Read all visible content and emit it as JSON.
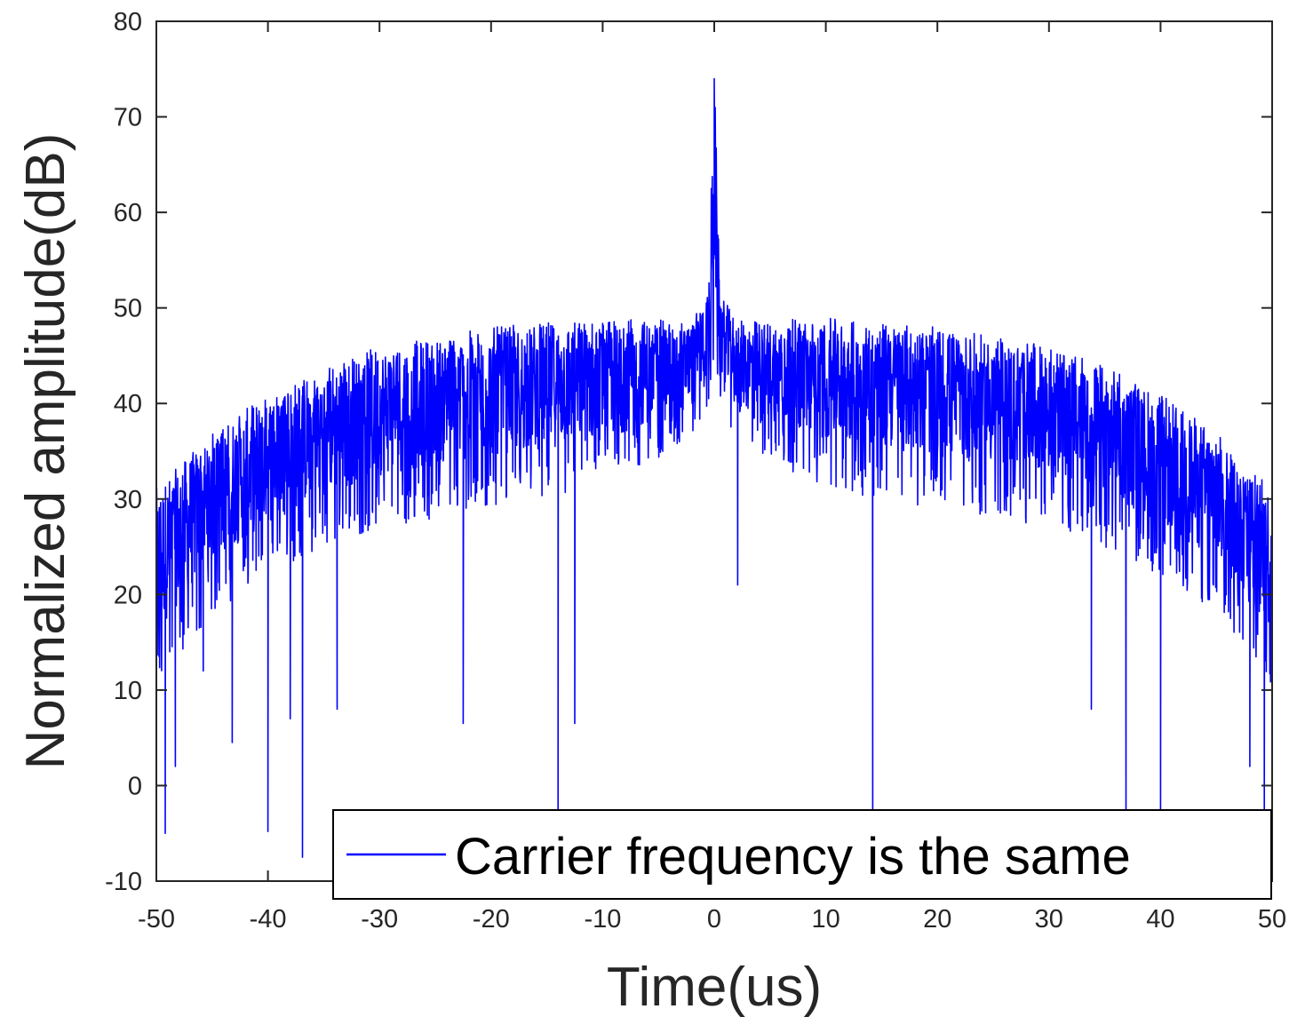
{
  "chart_data": {
    "type": "line",
    "xlabel": "Time(us)",
    "ylabel": "Normalized amplitude(dB)",
    "xlim": [
      -50,
      50
    ],
    "ylim": [
      -10,
      80
    ],
    "x_ticks": [
      -50,
      -40,
      -30,
      -20,
      -10,
      0,
      10,
      20,
      30,
      40,
      50
    ],
    "y_ticks": [
      -10,
      0,
      10,
      20,
      30,
      40,
      50,
      60,
      70,
      80
    ],
    "x_tick_labels": [
      "-50",
      "-40",
      "-30",
      "-20",
      "-10",
      "0",
      "10",
      "20",
      "30",
      "40",
      "50"
    ],
    "y_tick_labels": [
      "-10",
      "0",
      "10",
      "20",
      "30",
      "40",
      "50",
      "60",
      "70",
      "80"
    ],
    "legend": {
      "position": "bottom-right",
      "entries": [
        "Carrier frequency is the same"
      ]
    },
    "grid": false,
    "series": [
      {
        "name": "Carrier frequency is the same",
        "color": "#0000ff",
        "profile": {
          "x": [
            -50,
            -45,
            -40,
            -35,
            -30,
            -20,
            -10,
            -2,
            -0.5,
            0,
            0.5,
            2,
            10,
            20,
            30,
            35,
            40,
            45,
            50
          ],
          "upper": [
            30,
            36,
            40,
            43,
            45,
            47,
            48,
            48,
            51,
            74,
            51,
            48,
            48,
            47,
            45,
            43,
            40,
            36,
            30
          ],
          "lower": [
            10,
            18,
            22,
            25,
            27,
            29,
            31,
            36,
            40,
            44,
            40,
            36,
            31,
            29,
            27,
            25,
            22,
            18,
            10
          ]
        },
        "deep_nulls": [
          {
            "x": -49.2,
            "y": -5
          },
          {
            "x": -48.3,
            "y": 2
          },
          {
            "x": -45.8,
            "y": 12
          },
          {
            "x": -43.2,
            "y": 4.5
          },
          {
            "x": -40.0,
            "y": -4.8
          },
          {
            "x": -38.0,
            "y": 7
          },
          {
            "x": -36.9,
            "y": -7.5
          },
          {
            "x": -33.8,
            "y": 8
          },
          {
            "x": -22.5,
            "y": 6.5
          },
          {
            "x": -14.0,
            "y": -3
          },
          {
            "x": -12.5,
            "y": 6.5
          },
          {
            "x": 2.1,
            "y": 21
          },
          {
            "x": 14.2,
            "y": -3
          },
          {
            "x": 33.8,
            "y": 8
          },
          {
            "x": 36.9,
            "y": -3
          },
          {
            "x": 40.0,
            "y": -3
          },
          {
            "x": 48.0,
            "y": 2
          },
          {
            "x": 49.3,
            "y": -3
          }
        ]
      }
    ]
  }
}
